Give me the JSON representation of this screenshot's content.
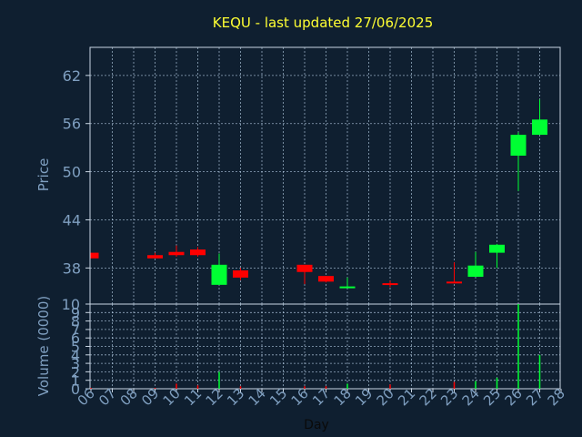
{
  "chart_data": [
    {
      "type": "candlestick",
      "title": "KEQU - last updated 27/06/2025",
      "ylabel": "Price",
      "xlabel": "Day",
      "ylim": [
        33.5,
        65.5
      ],
      "yticks": [
        38,
        44,
        50,
        56,
        62
      ],
      "grid": true,
      "categories": [
        "06",
        "07",
        "08",
        "09",
        "10",
        "11",
        "12",
        "13",
        "14",
        "15",
        "16",
        "17",
        "18",
        "19",
        "20",
        "21",
        "22",
        "23",
        "24",
        "25",
        "26",
        "27",
        "28"
      ],
      "series": [
        {
          "x": "06",
          "open": 39.9,
          "high": 39.9,
          "low": 39.2,
          "close": 39.2
        },
        {
          "x": "09",
          "open": 39.6,
          "high": 39.9,
          "low": 39.2,
          "close": 39.2
        },
        {
          "x": "10",
          "open": 40.0,
          "high": 40.8,
          "low": 39.4,
          "close": 39.6
        },
        {
          "x": "11",
          "open": 40.3,
          "high": 40.6,
          "low": 39.4,
          "close": 39.6
        },
        {
          "x": "12",
          "open": 35.9,
          "high": 39.8,
          "low": 35.9,
          "close": 38.4
        },
        {
          "x": "13",
          "open": 37.7,
          "high": 38.0,
          "low": 36.5,
          "close": 36.8
        },
        {
          "x": "16",
          "open": 38.4,
          "high": 38.4,
          "low": 36.0,
          "close": 37.5
        },
        {
          "x": "17",
          "open": 37.0,
          "high": 37.0,
          "low": 36.2,
          "close": 36.3
        },
        {
          "x": "18",
          "open": 35.5,
          "high": 36.8,
          "low": 35.5,
          "close": 35.7
        },
        {
          "x": "20",
          "open": 36.1,
          "high": 36.4,
          "low": 35.6,
          "close": 36.0
        },
        {
          "x": "23",
          "open": 36.3,
          "high": 38.7,
          "low": 36.1,
          "close": 36.1
        },
        {
          "x": "24",
          "open": 36.9,
          "high": 40.0,
          "low": 36.9,
          "close": 38.3
        },
        {
          "x": "25",
          "open": 39.9,
          "high": 41.0,
          "low": 38.0,
          "close": 40.9
        },
        {
          "x": "26",
          "open": 52.0,
          "high": 54.9,
          "low": 47.6,
          "close": 54.6
        },
        {
          "x": "27",
          "open": 54.6,
          "high": 59.0,
          "low": 54.6,
          "close": 56.5
        }
      ],
      "colors": {
        "up": "#00ff33",
        "down": "#ff0000",
        "title": "#ffff33",
        "axis": "#7f9fc0",
        "grid": "#bfd7ef",
        "frame": "#c9d6e3"
      }
    },
    {
      "type": "bar",
      "ylabel": "Volume (0000)",
      "ylim": [
        0,
        10
      ],
      "yticks": [
        0,
        1,
        2,
        3,
        4,
        5,
        6,
        7,
        8,
        9,
        10
      ],
      "series": [
        {
          "x": "06",
          "value": 0.1,
          "dir": "down"
        },
        {
          "x": "09",
          "value": 0.1,
          "dir": "down"
        },
        {
          "x": "10",
          "value": 0.6,
          "dir": "down"
        },
        {
          "x": "11",
          "value": 0.4,
          "dir": "down"
        },
        {
          "x": "12",
          "value": 2.0,
          "dir": "up"
        },
        {
          "x": "13",
          "value": 0.3,
          "dir": "down"
        },
        {
          "x": "16",
          "value": 0.3,
          "dir": "down"
        },
        {
          "x": "17",
          "value": 0.3,
          "dir": "down"
        },
        {
          "x": "18",
          "value": 0.6,
          "dir": "up"
        },
        {
          "x": "20",
          "value": 0.5,
          "dir": "down"
        },
        {
          "x": "23",
          "value": 0.8,
          "dir": "down"
        },
        {
          "x": "24",
          "value": 0.9,
          "dir": "up"
        },
        {
          "x": "25",
          "value": 1.3,
          "dir": "up"
        },
        {
          "x": "26",
          "value": 10.0,
          "dir": "up"
        },
        {
          "x": "27",
          "value": 4.0,
          "dir": "up"
        }
      ]
    }
  ]
}
